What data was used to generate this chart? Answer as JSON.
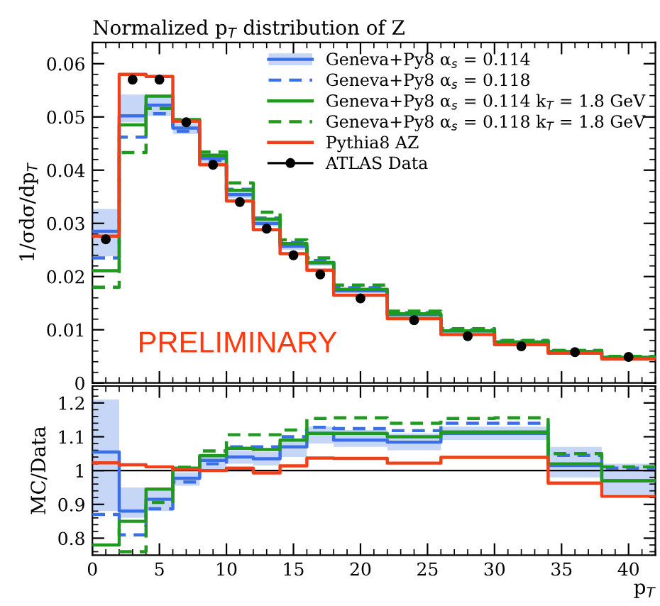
{
  "chart_data": [
    {
      "type": "step",
      "title": "Normalized p$_{T}$ distribution of Z",
      "ylabel": "1/σdσ/dp$_{T}$",
      "x": [
        0,
        2,
        4,
        6,
        8,
        10,
        12,
        14,
        16,
        18,
        22,
        26,
        30,
        34,
        38,
        42
      ],
      "xlim": [
        0,
        42
      ],
      "xticks": [
        0,
        5,
        10,
        15,
        20,
        25,
        30,
        35,
        40
      ],
      "ylim": [
        0,
        0.064
      ],
      "yticks": [
        0,
        0.01,
        0.02,
        0.03,
        0.04,
        0.05,
        0.06
      ],
      "tick_labels": "y",
      "legend": "top right",
      "annotations": [
        "PRELIMINARY"
      ],
      "series": [
        {
          "name": "Geneva+Py8 α$_{s}$ = 0.114",
          "color": "#3a6fe8",
          "line_style": "solid",
          "values": [
            0.0285,
            0.0502,
            0.0522,
            0.0479,
            0.0422,
            0.0354,
            0.03,
            0.0257,
            0.0226,
            0.0173,
            0.0128,
            0.0098,
            0.0077,
            0.0059,
            0.0048,
            0.0048
          ],
          "lower": [
            0.0238,
            0.049,
            0.0502,
            0.0468,
            0.041,
            0.0347,
            0.0294,
            0.025,
            0.022,
            0.017,
            0.0125,
            0.0096,
            0.0075,
            0.0057,
            0.0046,
            0.0046
          ],
          "upper": [
            0.0327,
            0.0542,
            0.0542,
            0.0488,
            0.0431,
            0.036,
            0.0306,
            0.0262,
            0.0231,
            0.0178,
            0.0131,
            0.0099,
            0.0078,
            0.0062,
            0.005,
            0.005
          ]
        },
        {
          "name": "Geneva+Py8 α$_{s}$ = 0.118",
          "color": "#3a6fe8",
          "line_style": "dashed",
          "values": [
            0.0235,
            0.0462,
            0.0506,
            0.0473,
            0.0418,
            0.0364,
            0.031,
            0.0264,
            0.023,
            0.0179,
            0.0132,
            0.01,
            0.0079,
            0.0061,
            0.0049,
            0.0049
          ]
        },
        {
          "name": "Geneva+Py8 α$_{s}$ = 0.114 k$_{T}$ = 1.8 GeV",
          "color": "#1e9a1e",
          "line_style": "solid",
          "values": [
            0.0211,
            0.0485,
            0.0539,
            0.0493,
            0.0428,
            0.0362,
            0.0308,
            0.0262,
            0.0226,
            0.0176,
            0.013,
            0.0098,
            0.0077,
            0.0059,
            0.0048,
            0.0048
          ]
        },
        {
          "name": "Geneva+Py8 α$_{s}$ = 0.118 k$_{T}$ = 1.8 GeV",
          "color": "#1e9a1e",
          "line_style": "dashed",
          "values": [
            0.018,
            0.0433,
            0.0516,
            0.0495,
            0.0434,
            0.0376,
            0.0321,
            0.0269,
            0.0235,
            0.0184,
            0.0135,
            0.0102,
            0.008,
            0.0061,
            0.005,
            0.005
          ]
        },
        {
          "name": "Pythia8 AZ",
          "color": "#f0401a",
          "line_style": "solid",
          "values": [
            0.0276,
            0.058,
            0.0576,
            0.0492,
            0.041,
            0.0342,
            0.0288,
            0.0243,
            0.0212,
            0.0165,
            0.0121,
            0.0091,
            0.0072,
            0.0056,
            0.0045,
            0.0045
          ]
        },
        {
          "name": "ATLAS Data",
          "type": "scatter",
          "color": "#000000",
          "marker": "circle",
          "x": [
            1,
            3,
            5,
            7,
            9,
            11,
            13,
            15,
            17,
            20,
            24,
            28,
            32,
            36,
            40
          ],
          "values": [
            0.027,
            0.057,
            0.057,
            0.049,
            0.041,
            0.034,
            0.029,
            0.024,
            0.0204,
            0.0159,
            0.0118,
            0.0088,
            0.0069,
            0.0058,
            0.0049
          ]
        }
      ]
    },
    {
      "type": "step",
      "ylabel": "MC/Data",
      "xlabel": "p$_{T}$",
      "x": [
        0,
        2,
        4,
        6,
        8,
        10,
        12,
        14,
        16,
        18,
        22,
        26,
        30,
        34,
        38,
        42
      ],
      "xlim": [
        0,
        42
      ],
      "xticks": [
        0,
        5,
        10,
        15,
        20,
        25,
        30,
        35,
        40
      ],
      "ylim": [
        0.75,
        1.25
      ],
      "yticks": [
        0.8,
        0.9,
        1,
        1.1,
        1.2
      ],
      "ref_lines": [
        {
          "axis": "y",
          "value": 1,
          "color": "#000000"
        }
      ],
      "series": [
        {
          "color": "#3a6fe8",
          "line_style": "solid",
          "values": [
            1.055,
            0.88,
            0.915,
            0.977,
            1.03,
            1.04,
            1.035,
            1.07,
            1.11,
            1.09,
            1.084,
            1.11,
            1.11,
            1.015,
            0.97,
            0.97
          ],
          "lower": [
            0.88,
            0.86,
            0.88,
            0.955,
            1.0,
            1.02,
            1.015,
            1.04,
            1.08,
            1.07,
            1.06,
            1.09,
            1.09,
            0.98,
            0.93,
            0.93
          ],
          "upper": [
            1.21,
            0.95,
            0.95,
            0.995,
            1.05,
            1.06,
            1.055,
            1.09,
            1.13,
            1.12,
            1.11,
            1.13,
            1.13,
            1.07,
            1.02,
            1.02
          ]
        },
        {
          "color": "#3a6fe8",
          "line_style": "dashed",
          "values": [
            0.87,
            0.81,
            0.887,
            0.966,
            1.02,
            1.07,
            1.07,
            1.1,
            1.128,
            1.124,
            1.118,
            1.14,
            1.14,
            1.045,
            1.007,
            1.007
          ]
        },
        {
          "color": "#1e9a1e",
          "line_style": "solid",
          "values": [
            0.78,
            0.85,
            0.945,
            1.007,
            1.044,
            1.066,
            1.062,
            1.09,
            1.11,
            1.11,
            1.1,
            1.114,
            1.114,
            1.02,
            0.97,
            0.97
          ]
        },
        {
          "color": "#1e9a1e",
          "line_style": "dashed",
          "values": [
            null,
            0.76,
            0.906,
            1.01,
            1.058,
            1.106,
            1.106,
            1.12,
            1.154,
            1.156,
            1.14,
            1.154,
            1.156,
            1.05,
            1.011,
            1.011
          ]
        },
        {
          "color": "#f0401a",
          "line_style": "solid",
          "values": [
            1.023,
            1.017,
            1.011,
            1.004,
            1.0,
            1.007,
            0.993,
            1.014,
            1.037,
            1.036,
            1.022,
            1.039,
            1.039,
            0.963,
            0.924,
            0.924
          ]
        }
      ]
    }
  ]
}
